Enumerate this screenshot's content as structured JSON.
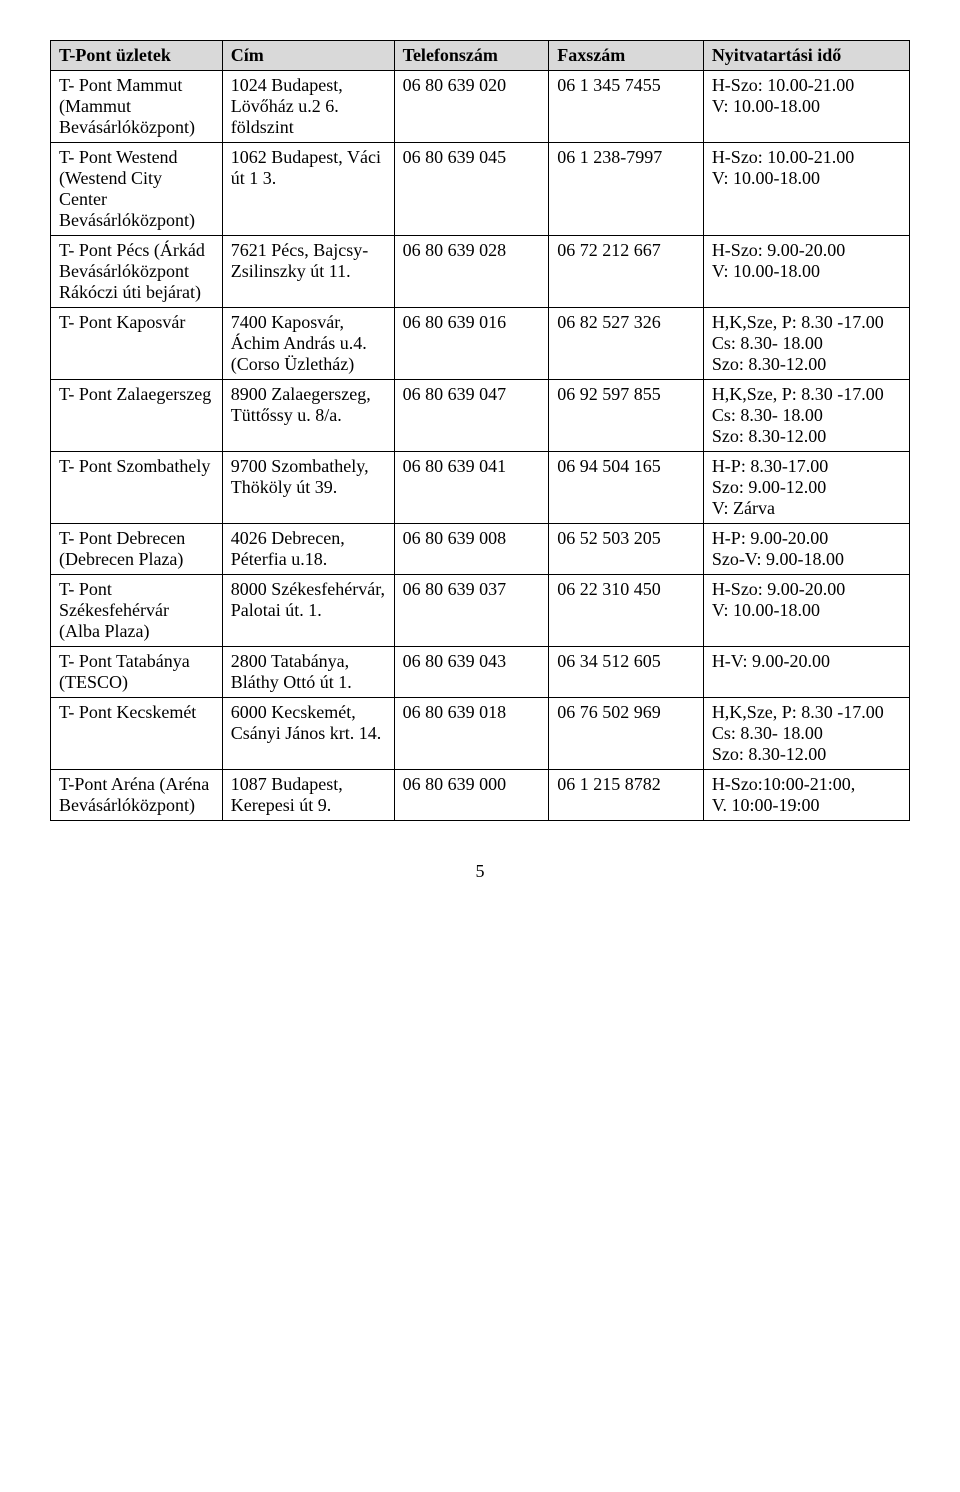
{
  "table": {
    "headers": [
      "T-Pont üzletek",
      "Cím",
      "Telefonszám",
      "Faxszám",
      "Nyitvatartási idő"
    ],
    "rows": [
      {
        "store": "T- Pont Mammut (Mammut Bevásárlóközpont)",
        "address": "1024 Budapest, Lövőház u.2 6. földszint",
        "phone": "06 80 639 020",
        "fax": "06 1 345 7455",
        "hours": "H-Szo: 10.00-21.00\nV: 10.00-18.00"
      },
      {
        "store": "T- Pont Westend (Westend City Center Bevásárlóközpont)",
        "address": "1062 Budapest, Váci út 1 3.",
        "phone": "06 80 639 045",
        "fax": "06 1 238-7997",
        "hours": "H-Szo: 10.00-21.00\nV: 10.00-18.00"
      },
      {
        "store": "T- Pont  Pécs (Árkád Bevásárlóközpont Rákóczi úti bejárat)",
        "address": "7621 Pécs, Bajcsy-Zsilinszky út 11.",
        "phone": "06 80 639 028",
        "fax": "06 72 212 667",
        "hours": "H-Szo: 9.00-20.00\nV: 10.00-18.00"
      },
      {
        "store": "T- Pont Kaposvár",
        "address": "7400 Kaposvár, Áchim András u.4.(Corso Üzletház)",
        "phone": "06 80 639 016",
        "fax": "06 82 527 326",
        "hours": "H,K,Sze, P: 8.30 -17.00\nCs: 8.30- 18.00\nSzo: 8.30-12.00"
      },
      {
        "store": "T- Pont Zalaegerszeg",
        "address": "8900 Zalaegerszeg, Tüttőssy u. 8/a.",
        "phone": "06 80 639 047",
        "fax": "06 92 597 855",
        "hours": "H,K,Sze, P: 8.30 -17.00\nCs: 8.30- 18.00\nSzo: 8.30-12.00"
      },
      {
        "store": "T- Pont Szombathely",
        "address": "9700 Szombathely, Thököly út 39.",
        "phone": "06 80 639 041",
        "fax": "06 94 504 165",
        "hours": "H-P: 8.30-17.00\nSzo: 9.00-12.00\nV: Zárva"
      },
      {
        "store": "T- Pont Debrecen (Debrecen Plaza)",
        "address": "4026 Debrecen, Péterfia u.18.",
        "phone": "06 80 639 008",
        "fax": "06 52 503 205",
        "hours": "H-P: 9.00-20.00\nSzo-V: 9.00-18.00"
      },
      {
        "store": "T- Pont Székesfehérvár (Alba Plaza)",
        "address": "8000 Székesfehérvár, Palotai út. 1.",
        "phone": "06 80 639 037",
        "fax": "06 22 310 450",
        "hours": "H-Szo: 9.00-20.00\nV: 10.00-18.00"
      },
      {
        "store": "T- Pont Tatabánya (TESCO)",
        "address": "2800 Tatabánya, Bláthy Ottó út 1.",
        "phone": "06 80 639 043",
        "fax": "06 34 512 605",
        "hours": "H-V: 9.00-20.00"
      },
      {
        "store": "T- Pont Kecskemét",
        "address": "6000 Kecskemét, Csányi János krt. 14.",
        "phone": "06 80 639 018",
        "fax": "06 76 502 969",
        "hours": "H,K,Sze, P: 8.30 -17.00\nCs: 8.30- 18.00\nSzo: 8.30-12.00"
      },
      {
        "store": "T-Pont Aréna (Aréna Bevásárlóközpont)",
        "address": "1087 Budapest, Kerepesi út 9.",
        "phone": "06 80 639 000",
        "fax": "06 1 215 8782",
        "hours": "H-Szo:10:00-21:00,\nV. 10:00-19:00"
      }
    ]
  },
  "page_number": "5"
}
